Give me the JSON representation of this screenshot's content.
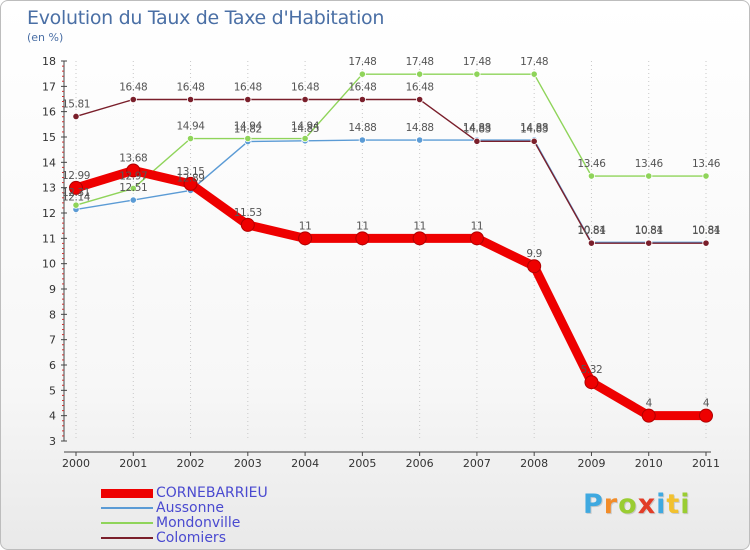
{
  "title": "Evolution du Taux de Taxe d'Habitation",
  "subtitle": "(en %)",
  "colors": {
    "title": "#4a6fa5",
    "grid": "#c8c8c8",
    "axis": "#444444",
    "legend_text": "#4a4ad0"
  },
  "logo": {
    "letters": [
      {
        "char": "P",
        "color": "#3fa9e0"
      },
      {
        "char": "r",
        "color": "#f28c28"
      },
      {
        "char": "o",
        "color": "#9acd32"
      },
      {
        "char": "x",
        "color": "#e23d28"
      },
      {
        "char": "i",
        "color": "#3fa9e0"
      },
      {
        "char": "t",
        "color": "#f2c12e"
      },
      {
        "char": "i",
        "color": "#9acd32"
      }
    ]
  },
  "chart_data": {
    "type": "line",
    "title": "Evolution du Taux de Taxe d'Habitation",
    "subtitle": "(en %)",
    "xlabel": "",
    "ylabel": "",
    "categories": [
      "2000",
      "2001",
      "2002",
      "2003",
      "2004",
      "2005",
      "2006",
      "2007",
      "2008",
      "2009",
      "2010",
      "2011"
    ],
    "ylim": [
      3,
      18
    ],
    "yticks": [
      3,
      4,
      5,
      6,
      7,
      8,
      9,
      10,
      11,
      12,
      13,
      14,
      15,
      16,
      17,
      18
    ],
    "grid": "vertical dotted",
    "legend_placement": "bottom-left",
    "series": [
      {
        "name": "CORNEBARRIEU",
        "color": "#ee0000",
        "width": 9,
        "values": [
          12.99,
          13.68,
          13.15,
          11.53,
          11,
          11,
          11,
          11,
          9.9,
          5.32,
          4,
          4
        ],
        "labels": [
          "12.99",
          "13.68",
          "13.15",
          "11.53",
          "11",
          "11",
          "11",
          "11",
          "9.9",
          "5.32",
          "4",
          "4"
        ]
      },
      {
        "name": "Aussonne",
        "color": "#5b9bd5",
        "width": 1.4,
        "values": [
          12.14,
          12.51,
          12.89,
          14.82,
          14.85,
          14.88,
          14.88,
          14.88,
          14.88,
          10.84,
          10.84,
          10.84
        ],
        "labels": [
          "12.14",
          "12.51",
          "12.89",
          "14.82",
          "14.85",
          "14.88",
          "14.88",
          "14.88",
          "14.88",
          "10.84",
          "10.84",
          "10.84"
        ]
      },
      {
        "name": "Mondonville",
        "color": "#8fd45a",
        "width": 1.4,
        "values": [
          12.31,
          12.97,
          14.94,
          14.94,
          14.94,
          17.48,
          17.48,
          17.48,
          17.48,
          13.46,
          13.46,
          13.46
        ],
        "labels": [
          "12.31",
          "12.97",
          "14.94",
          "14.94",
          "14.94",
          "17.48",
          "17.48",
          "17.48",
          "17.48",
          "13.46",
          "13.46",
          "13.46"
        ]
      },
      {
        "name": "Colomiers",
        "color": "#7a1f2b",
        "width": 1.4,
        "values": [
          15.81,
          16.48,
          16.48,
          16.48,
          16.48,
          16.48,
          16.48,
          14.83,
          14.83,
          10.81,
          10.81,
          10.81
        ],
        "labels": [
          "15.81",
          "16.48",
          "16.48",
          "16.48",
          "16.48",
          "16.48",
          "16.48",
          "14.83",
          "14.83",
          "10.81",
          "10.81",
          "10.81"
        ]
      }
    ]
  }
}
